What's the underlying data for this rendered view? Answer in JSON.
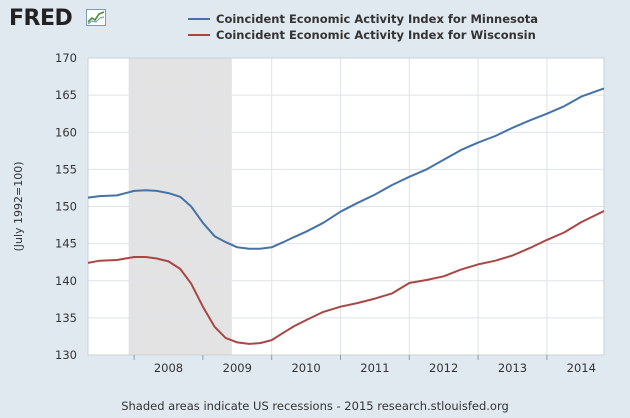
{
  "header": {
    "logo_text": "FRED",
    "logo_icon": "chart-line-icon"
  },
  "footer": {
    "note": "Shaded areas indicate US recessions - 2015 research.stlouisfed.org"
  },
  "colors": {
    "background": "#e1e9f0",
    "plot_background": "#ffffff",
    "grid": "#dde4ea",
    "recession": "#e3e3e3",
    "minnesota": "#4572a7",
    "wisconsin": "#aa4643"
  },
  "chart_data": {
    "type": "line",
    "title": "",
    "xlabel": "",
    "ylabel": "(July 1992=100)",
    "xlim": [
      2007.33,
      2014.83
    ],
    "ylim": [
      130,
      170
    ],
    "yticks": [
      130,
      135,
      140,
      145,
      150,
      155,
      160,
      165,
      170
    ],
    "xticks": [
      "2008",
      "2009",
      "2010",
      "2011",
      "2012",
      "2013",
      "2014"
    ],
    "grid": true,
    "legend": "top",
    "recessions": [
      {
        "start": 2007.92,
        "end": 2009.42
      }
    ],
    "series": [
      {
        "name": "Coincident Economic Activity Index for Minnesota",
        "color": "#4572a7",
        "x": [
          2007.33,
          2007.5,
          2007.75,
          2008.0,
          2008.17,
          2008.33,
          2008.5,
          2008.67,
          2008.83,
          2009.0,
          2009.17,
          2009.33,
          2009.5,
          2009.67,
          2009.83,
          2010.0,
          2010.17,
          2010.33,
          2010.5,
          2010.75,
          2011.0,
          2011.25,
          2011.5,
          2011.75,
          2012.0,
          2012.25,
          2012.5,
          2012.75,
          2013.0,
          2013.25,
          2013.5,
          2013.75,
          2014.0,
          2014.25,
          2014.5,
          2014.83
        ],
        "y": [
          151.2,
          151.4,
          151.5,
          152.1,
          152.2,
          152.1,
          151.8,
          151.3,
          150.0,
          147.8,
          146.0,
          145.2,
          144.5,
          144.3,
          144.3,
          144.5,
          145.2,
          145.9,
          146.6,
          147.8,
          149.3,
          150.5,
          151.6,
          152.9,
          154.0,
          155.0,
          156.3,
          157.6,
          158.6,
          159.5,
          160.6,
          161.6,
          162.5,
          163.5,
          164.8,
          165.9
        ]
      },
      {
        "name": "Coincident Economic Activity Index for Wisconsin",
        "color": "#aa4643",
        "x": [
          2007.33,
          2007.5,
          2007.75,
          2008.0,
          2008.17,
          2008.33,
          2008.5,
          2008.67,
          2008.83,
          2009.0,
          2009.17,
          2009.33,
          2009.5,
          2009.67,
          2009.83,
          2010.0,
          2010.17,
          2010.33,
          2010.5,
          2010.75,
          2011.0,
          2011.25,
          2011.5,
          2011.75,
          2012.0,
          2012.25,
          2012.5,
          2012.75,
          2013.0,
          2013.25,
          2013.5,
          2013.75,
          2014.0,
          2014.25,
          2014.5,
          2014.83
        ],
        "y": [
          142.4,
          142.7,
          142.8,
          143.2,
          143.2,
          143.0,
          142.6,
          141.6,
          139.6,
          136.5,
          133.8,
          132.3,
          131.7,
          131.5,
          131.6,
          132.0,
          133.0,
          133.9,
          134.7,
          135.8,
          136.5,
          137.0,
          137.6,
          138.3,
          139.7,
          140.1,
          140.6,
          141.5,
          142.2,
          142.7,
          143.4,
          144.4,
          145.5,
          146.5,
          147.9,
          149.4
        ]
      }
    ]
  }
}
